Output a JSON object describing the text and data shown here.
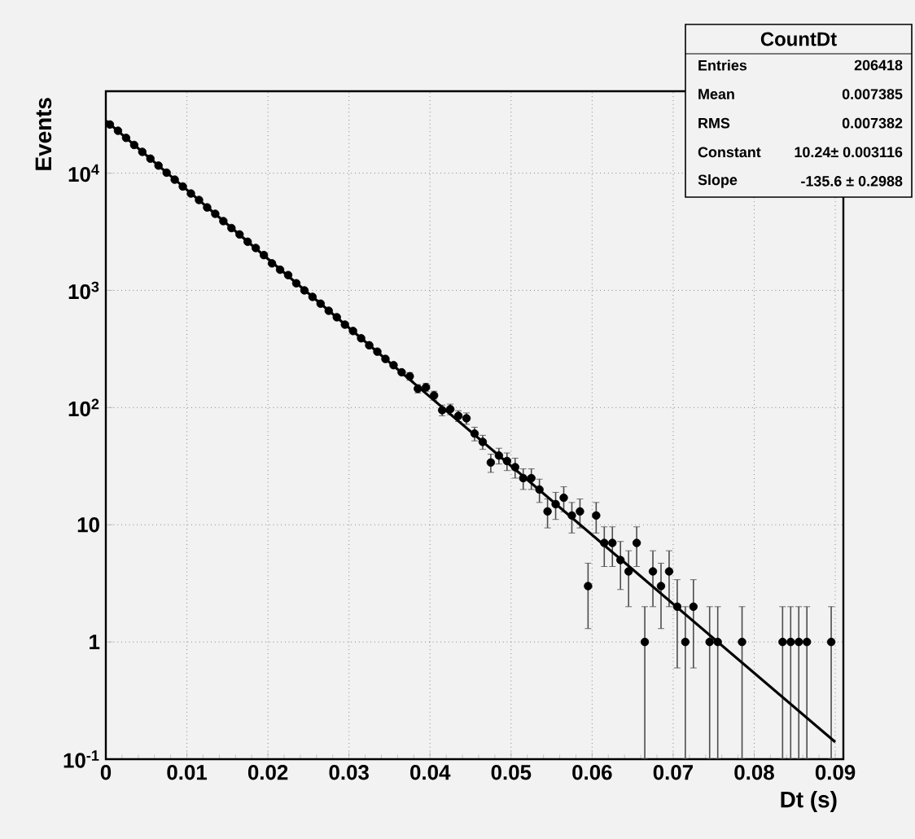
{
  "chart_data": {
    "type": "scatter",
    "xlabel": "Dt (s)",
    "ylabel": "Events",
    "log": "y",
    "grid": true,
    "xlim": [
      0,
      0.091
    ],
    "ylim": [
      0.1,
      50000
    ],
    "xticks": [
      0,
      0.01,
      0.02,
      0.03,
      0.04,
      0.05,
      0.06,
      0.07,
      0.08,
      0.09
    ],
    "yticks": [
      {
        "value": 0.1,
        "label": "10$^{-1}$"
      },
      1,
      10,
      {
        "value": 100,
        "label": "10$^{2}$"
      },
      {
        "value": 1000,
        "label": "10$^{3}$"
      },
      {
        "value": 10000,
        "label": "10$^{4}$"
      }
    ],
    "annotations": [
      "CountDt",
      "Entries",
      "206418",
      "Mean",
      "0.007385",
      "RMS",
      "0.007382",
      "Constant",
      "10.24± 0.003116",
      "Slope",
      "-135.6 ± 0.2988"
    ],
    "series": [
      {
        "color": "#000000",
        "marker": "circle",
        "x": [
          0.0005,
          0.0015,
          0.0025,
          0.0035,
          0.0045,
          0.0055,
          0.0065,
          0.0075,
          0.0085,
          0.0095,
          0.0105,
          0.0115,
          0.0125,
          0.0135,
          0.0145,
          0.0155,
          0.0165,
          0.0175,
          0.0185,
          0.0195,
          0.0205,
          0.0215,
          0.0225,
          0.0235,
          0.0245,
          0.0255,
          0.0265,
          0.0275,
          0.0285,
          0.0295,
          0.0305,
          0.0315,
          0.0325,
          0.0335,
          0.0345,
          0.0355,
          0.0365,
          0.0375,
          0.0385,
          0.0395,
          0.0405,
          0.0415,
          0.0425,
          0.0435,
          0.0445,
          0.0455,
          0.0465,
          0.0475,
          0.0485,
          0.0495,
          0.0505,
          0.0515,
          0.0525,
          0.0535,
          0.0545,
          0.0555,
          0.0565,
          0.0575,
          0.0585,
          0.0595,
          0.0605,
          0.0615,
          0.0625,
          0.0635,
          0.0645,
          0.0655,
          0.0665,
          0.0675,
          0.0685,
          0.0695,
          0.0705,
          0.0715,
          0.0725,
          0.0735,
          0.0745,
          0.0755,
          0.0765,
          0.0775,
          0.0785,
          0.0795,
          0.0805,
          0.0815,
          0.0825,
          0.0835,
          0.0845,
          0.0855,
          0.0865,
          0.0875,
          0.0885,
          0.0895
        ],
        "values": [
          26000,
          23000,
          20000,
          17400,
          15200,
          13300,
          11600,
          10100,
          8800,
          7700,
          6700,
          5900,
          5100,
          4500,
          3900,
          3400,
          3000,
          2600,
          2300,
          2000,
          1700,
          1500,
          1350,
          1150,
          1000,
          880,
          770,
          670,
          590,
          510,
          450,
          390,
          340,
          300,
          260,
          230,
          200,
          185,
          145,
          149,
          127,
          95,
          97,
          85,
          81,
          60,
          51,
          34,
          39,
          35,
          31,
          25,
          25,
          20,
          13,
          15,
          17,
          12,
          13,
          3,
          12,
          7,
          7,
          5,
          4,
          7,
          1,
          4,
          3,
          4,
          2,
          1,
          2,
          null,
          1,
          1,
          null,
          null,
          1,
          null,
          null,
          null,
          null,
          1,
          1,
          1,
          1,
          null,
          null,
          1
        ],
        "errors": [
          null,
          null,
          null,
          null,
          null,
          null,
          null,
          null,
          null,
          null,
          null,
          null,
          null,
          null,
          null,
          null,
          null,
          null,
          null,
          null,
          null,
          null,
          null,
          null,
          null,
          null,
          null,
          null,
          null,
          null,
          null,
          null,
          null,
          null,
          null,
          null,
          null,
          [
            171,
            199
          ],
          [
            133,
            157
          ],
          [
            137,
            161
          ],
          [
            116,
            138
          ],
          [
            85,
            105
          ],
          [
            87,
            107
          ],
          [
            76,
            94
          ],
          [
            72,
            90
          ],
          [
            52,
            68
          ],
          [
            44,
            58
          ],
          [
            28,
            40
          ],
          [
            33,
            45
          ],
          [
            29,
            41
          ],
          [
            25,
            37
          ],
          [
            20,
            30
          ],
          [
            20,
            30
          ],
          [
            15.5,
            24.5
          ],
          [
            9.4,
            16.6
          ],
          [
            11.1,
            18.9
          ],
          [
            12.9,
            21.1
          ],
          [
            8.5,
            15.5
          ],
          [
            9.4,
            16.6
          ],
          [
            1.3,
            4.7
          ],
          [
            8.5,
            15.5
          ],
          [
            4.4,
            9.6
          ],
          [
            4.4,
            9.6
          ],
          [
            2.8,
            7.2
          ],
          [
            2,
            6
          ],
          [
            4.4,
            9.6
          ],
          [
            0.1,
            2
          ],
          [
            2,
            6
          ],
          [
            1.3,
            4.7
          ],
          [
            2,
            6
          ],
          [
            0.6,
            3.4
          ],
          [
            0.1,
            2
          ],
          [
            0.6,
            3.4
          ],
          null,
          [
            0.1,
            2
          ],
          [
            0.1,
            2
          ],
          null,
          null,
          [
            0.1,
            2
          ],
          null,
          null,
          null,
          null,
          [
            0.1,
            2
          ],
          [
            0.1,
            2
          ],
          [
            0.1,
            2
          ],
          [
            0.1,
            2
          ],
          null,
          null,
          [
            0.1,
            2
          ]
        ]
      },
      {
        "type": "line",
        "color": "#000000",
        "marker": "none",
        "line_style": "solid",
        "x": [
          0,
          0.09
        ],
        "values": [
          28000,
          0.14
        ]
      }
    ]
  }
}
